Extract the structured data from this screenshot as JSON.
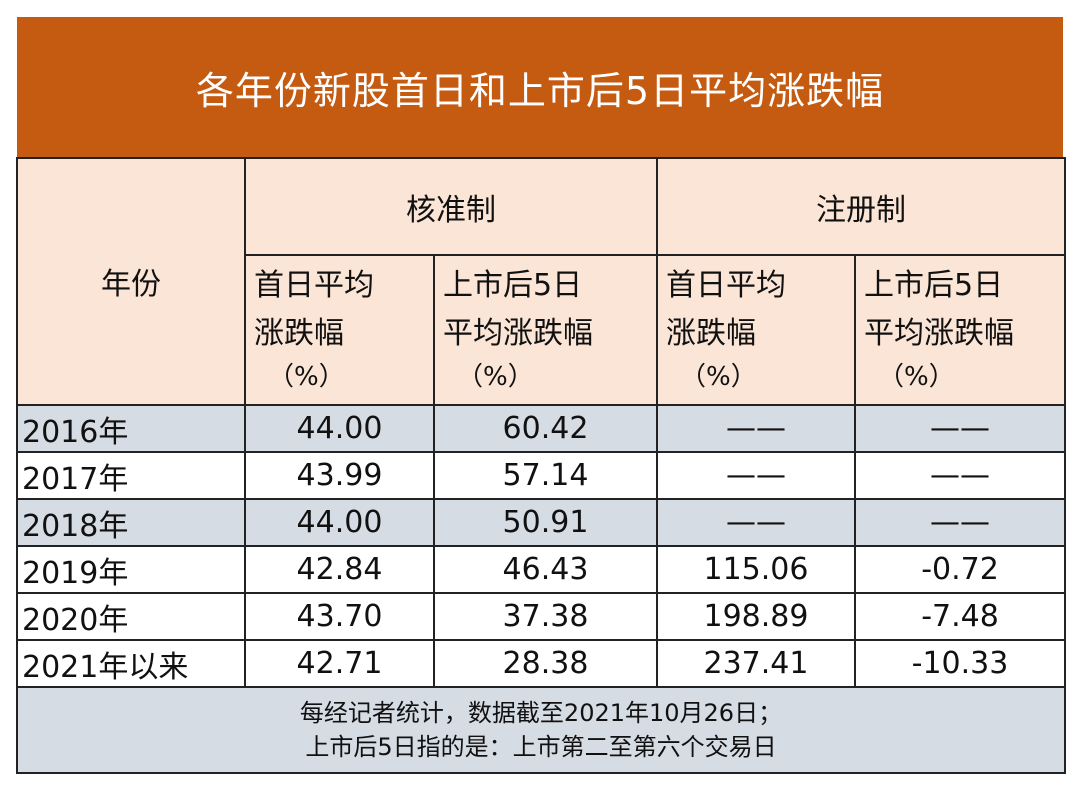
{
  "title": "各年份新股首日和上市后5日平均涨跌幅",
  "header": {
    "year": "年份",
    "group1": "核准制",
    "group2": "注册制",
    "col_first_day": [
      "首日平均",
      "涨跌幅"
    ],
    "col_five_day": [
      "上市后5日",
      "平均涨跌幅"
    ],
    "unit": "（%）"
  },
  "rows": [
    {
      "year": "2016年",
      "a": "44.00",
      "b": "60.42",
      "c": "——",
      "d": "——"
    },
    {
      "year": "2017年",
      "a": "43.99",
      "b": "57.14",
      "c": "——",
      "d": "——"
    },
    {
      "year": "2018年",
      "a": "44.00",
      "b": "50.91",
      "c": "——",
      "d": "——"
    },
    {
      "year": "2019年",
      "a": "42.84",
      "b": "46.43",
      "c": "115.06",
      "d": "-0.72"
    },
    {
      "year": "2020年",
      "a": "43.70",
      "b": "37.38",
      "c": "198.89",
      "d": "-7.48"
    },
    {
      "year": "2021年以来",
      "a": "42.71",
      "b": "28.38",
      "c": "237.41",
      "d": "-10.33"
    }
  ],
  "footer": [
    "每经记者统计，数据截至2021年10月26日；",
    "上市后5日指的是：上市第二至第六个交易日"
  ],
  "colors": {
    "title_bg": "#C55A11",
    "header_bg": "#FBE5D6",
    "stripe": "#D6DCE4"
  }
}
